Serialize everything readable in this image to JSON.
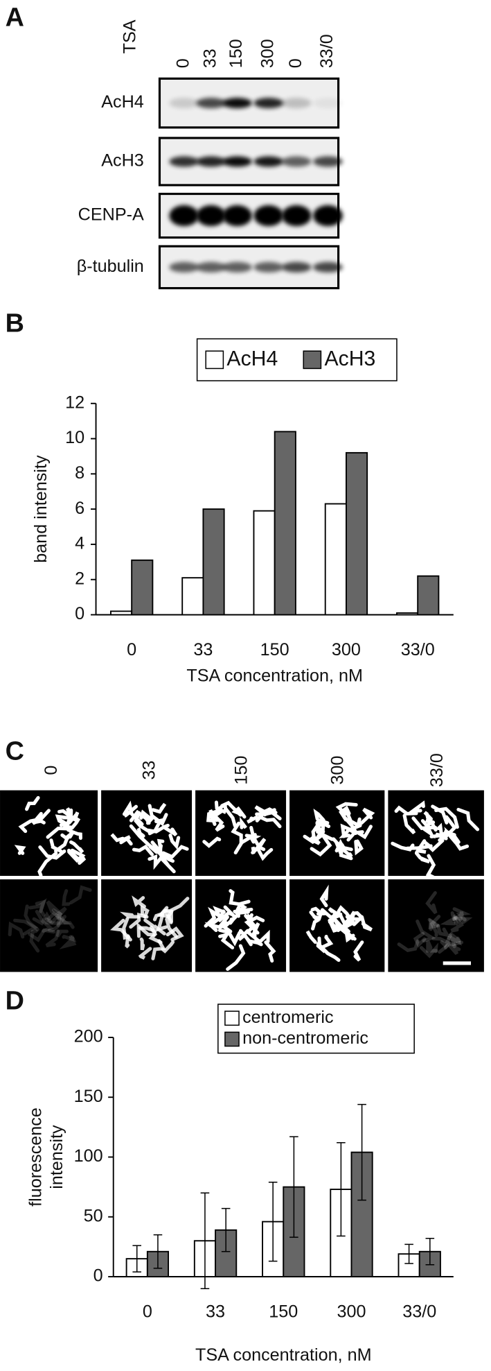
{
  "panel_a": {
    "letter": "A",
    "header": "TSA",
    "lanes": [
      "0",
      "33",
      "150",
      "300",
      "0",
      "33/0"
    ],
    "rows": [
      "AcH4",
      "AcH3",
      "CENP-A",
      "β-tubulin"
    ]
  },
  "panel_c": {
    "letter": "C",
    "labels": [
      "0",
      "33",
      "150",
      "300",
      "33/0"
    ]
  },
  "chart_data": [
    {
      "letter": "B",
      "type": "bar",
      "categories": [
        "0",
        "33",
        "150",
        "300",
        "33/0"
      ],
      "series": [
        {
          "name": "AcH4",
          "color": "#ffffff",
          "values": [
            0.2,
            2.1,
            5.9,
            6.3,
            0.1
          ]
        },
        {
          "name": "AcH3",
          "color": "#666666",
          "values": [
            3.1,
            6.0,
            10.4,
            9.2,
            2.2
          ]
        }
      ],
      "ylabel": "band intensity",
      "xlabel": "TSA concentration, nM",
      "ylim": [
        0,
        12
      ],
      "yticks": [
        0,
        2,
        4,
        6,
        8,
        10,
        12
      ]
    },
    {
      "letter": "D",
      "type": "bar",
      "categories": [
        "0",
        "33",
        "150",
        "300",
        "33/0"
      ],
      "series": [
        {
          "name": "centromeric",
          "color": "#ffffff",
          "values": [
            15,
            30,
            46,
            73,
            19
          ],
          "errors": [
            11,
            40,
            33,
            39,
            8
          ]
        },
        {
          "name": "non-centromeric",
          "color": "#666666",
          "values": [
            21,
            39,
            75,
            104,
            21
          ],
          "errors": [
            14,
            18,
            42,
            40,
            11
          ]
        }
      ],
      "ylabel_lines": [
        "fluorescence",
        "intensity"
      ],
      "xlabel": "TSA concentration, nM",
      "ylim": [
        0,
        200
      ],
      "yticks": [
        0,
        50,
        100,
        150,
        200
      ]
    }
  ]
}
